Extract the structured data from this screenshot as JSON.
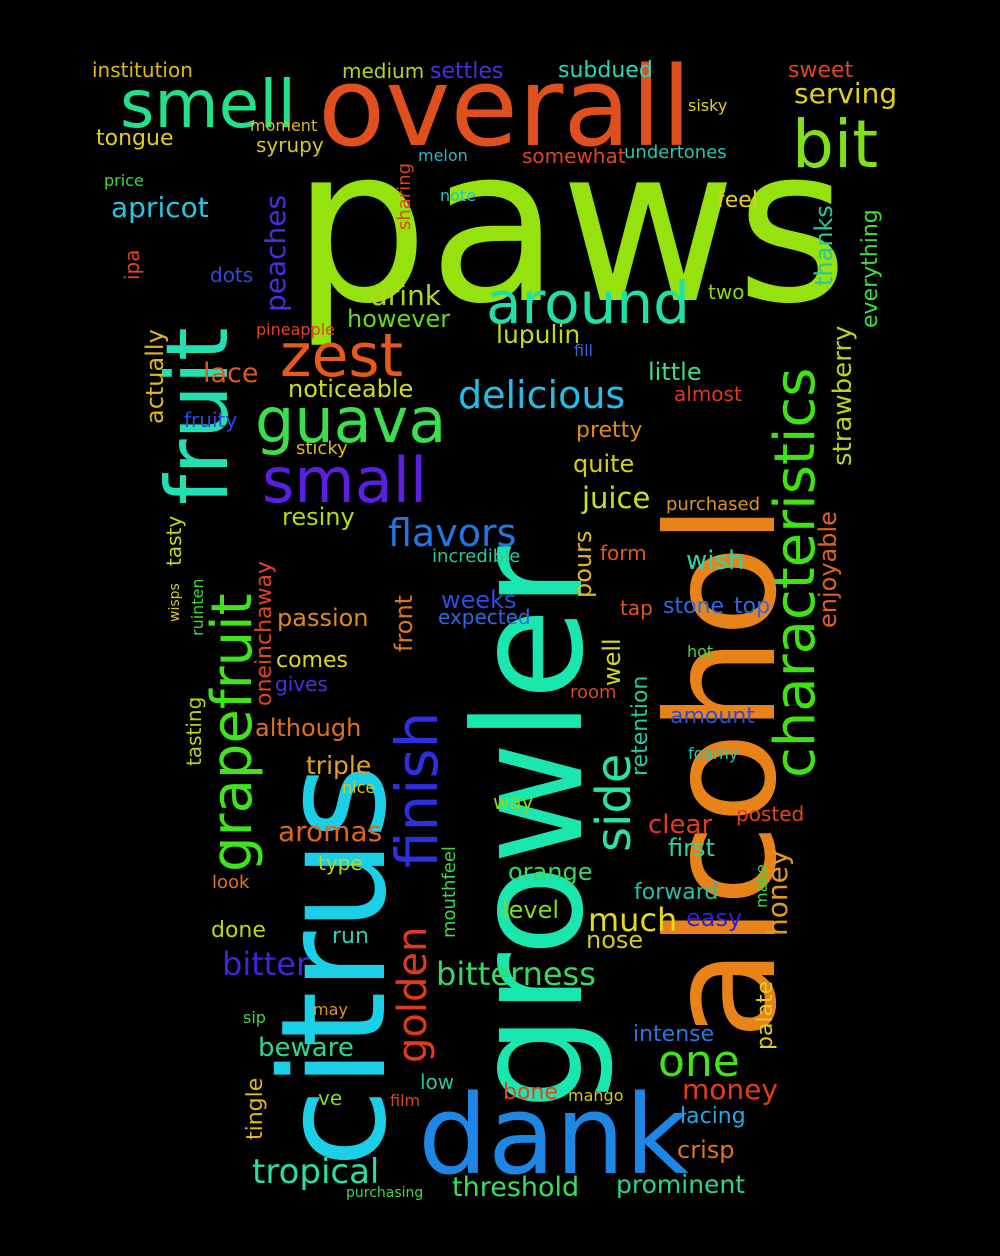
{
  "words": [
    {
      "text": "paws",
      "color": "#95e20f"
    },
    {
      "text": "alcohol",
      "color": "#e8831a"
    },
    {
      "text": "growler",
      "color": "#1ae7b0"
    },
    {
      "text": "citrus",
      "color": "#1bcfe6"
    },
    {
      "text": "fruit",
      "color": "#23e0b2"
    },
    {
      "text": "overall",
      "color": "#e0501e"
    },
    {
      "text": "dank",
      "color": "#1e86e4"
    },
    {
      "text": "characteristics",
      "color": "#3ee311"
    },
    {
      "text": "grapefruit",
      "color": "#40e41c"
    },
    {
      "text": "finish",
      "color": "#2d2fe0"
    },
    {
      "text": "smell",
      "color": "#21e28a"
    },
    {
      "text": "around",
      "color": "#20e0a8"
    },
    {
      "text": "bit",
      "color": "#80e01a"
    },
    {
      "text": "zest",
      "color": "#e65a1c"
    },
    {
      "text": "guava",
      "color": "#39e04c"
    },
    {
      "text": "small",
      "color": "#5a1fe0"
    },
    {
      "text": "delicious",
      "color": "#25bde8"
    },
    {
      "text": "side",
      "color": "#28e6a0"
    },
    {
      "text": "golden",
      "color": "#e43a1c"
    },
    {
      "text": "flavors",
      "color": "#2377e4"
    },
    {
      "text": "one",
      "color": "#40e418"
    },
    {
      "text": "bitterness",
      "color": "#3ad860"
    },
    {
      "text": "tropical",
      "color": "#2ae0a0"
    },
    {
      "text": "much",
      "color": "#e6d81c"
    },
    {
      "text": "juice",
      "color": "#c8e01e"
    },
    {
      "text": "bitter",
      "color": "#4521e0"
    },
    {
      "text": "money",
      "color": "#e63a1e"
    },
    {
      "text": "threshold",
      "color": "#39e060"
    },
    {
      "text": "prominent",
      "color": "#26d88a"
    },
    {
      "text": "strawberry",
      "color": "#b9d21c"
    },
    {
      "text": "enjoyable",
      "color": "#e2621c"
    },
    {
      "text": "honey",
      "color": "#e09a1c"
    },
    {
      "text": "peaches",
      "color": "#4a2fe0"
    },
    {
      "text": "serving",
      "color": "#e0cf1c"
    },
    {
      "text": "apricot",
      "color": "#26c6e6"
    },
    {
      "text": "drink",
      "color": "#b0d820"
    },
    {
      "text": "however",
      "color": "#64d81e"
    },
    {
      "text": "lupulin",
      "color": "#c2d91e"
    },
    {
      "text": "lace",
      "color": "#e05a1c"
    },
    {
      "text": "noticeable",
      "color": "#d3da1e"
    },
    {
      "text": "little",
      "color": "#3cdf80"
    },
    {
      "text": "pretty",
      "color": "#e08a1c"
    },
    {
      "text": "quite",
      "color": "#d6ce1c"
    },
    {
      "text": "resiny",
      "color": "#b0d81c"
    },
    {
      "text": "wish",
      "color": "#26d8b0"
    },
    {
      "text": "passion",
      "color": "#e08a1e"
    },
    {
      "text": "comes",
      "color": "#e0d61c"
    },
    {
      "text": "although",
      "color": "#e0701c"
    },
    {
      "text": "triple",
      "color": "#e0a51c"
    },
    {
      "text": "aromas",
      "color": "#e0661c"
    },
    {
      "text": "clear",
      "color": "#e63a1e"
    },
    {
      "text": "first",
      "color": "#26d8a0"
    },
    {
      "text": "orange",
      "color": "#36d860"
    },
    {
      "text": "level",
      "color": "#86d81c"
    },
    {
      "text": "nose",
      "color": "#d8c81c"
    },
    {
      "text": "easy",
      "color": "#3321d8"
    },
    {
      "text": "forward",
      "color": "#26c0a8"
    },
    {
      "text": "done",
      "color": "#b7d81c"
    },
    {
      "text": "run",
      "color": "#26d0b8"
    },
    {
      "text": "beware",
      "color": "#2bd890"
    },
    {
      "text": "crisp",
      "color": "#e0761c"
    },
    {
      "text": "lacing",
      "color": "#23a9e0"
    },
    {
      "text": "intense",
      "color": "#2679e0"
    },
    {
      "text": "bone",
      "color": "#e0461c"
    },
    {
      "text": "weeks",
      "color": "#2d4ce0"
    },
    {
      "text": "expected",
      "color": "#2d6ae0"
    },
    {
      "text": "pours",
      "color": "#e0b81c"
    },
    {
      "text": "well",
      "color": "#d4d81c"
    },
    {
      "text": "front",
      "color": "#e0761c"
    },
    {
      "text": "thanks",
      "color": "#26c8a0"
    },
    {
      "text": "everything",
      "color": "#3cdf40"
    },
    {
      "text": "actually",
      "color": "#e0b81c"
    },
    {
      "text": "tasting",
      "color": "#b0d81c"
    },
    {
      "text": "tingle",
      "color": "#e0b81c"
    },
    {
      "text": "retention",
      "color": "#26c8a0"
    },
    {
      "text": "palate",
      "color": "#e0cf1c"
    },
    {
      "text": "institution",
      "color": "#e0b81c"
    },
    {
      "text": "medium",
      "color": "#b0d81c"
    },
    {
      "text": "settles",
      "color": "#4a2fe0"
    },
    {
      "text": "subdued",
      "color": "#26d8c0"
    },
    {
      "text": "sweet",
      "color": "#e0461c"
    },
    {
      "text": "tongue",
      "color": "#e0cf1c"
    },
    {
      "text": "syrupy",
      "color": "#d8c81c"
    },
    {
      "text": "moment",
      "color": "#e0b81c"
    },
    {
      "text": "somewhat",
      "color": "#e0461c"
    },
    {
      "text": "undertones",
      "color": "#26c8b0"
    },
    {
      "text": "melon",
      "color": "#26b8c8"
    },
    {
      "text": "sharing",
      "color": "#e0461c"
    },
    {
      "text": "note",
      "color": "#26c8c0"
    },
    {
      "text": "sisky",
      "color": "#e0cf1c"
    },
    {
      "text": "price",
      "color": "#40d840"
    },
    {
      "text": "ipa",
      "color": "#e0461c"
    },
    {
      "text": "dots",
      "color": "#2d4ce0"
    },
    {
      "text": "feel",
      "color": "#e0cf1c"
    },
    {
      "text": "two",
      "color": "#86d81c"
    },
    {
      "text": "pineapple",
      "color": "#e0461c"
    },
    {
      "text": "fill",
      "color": "#2d6ae0"
    },
    {
      "text": "almost",
      "color": "#e03a1c"
    },
    {
      "text": "fruity",
      "color": "#2d4ce0"
    },
    {
      "text": "sticky",
      "color": "#e0b81c"
    },
    {
      "text": "purchased",
      "color": "#e0961c"
    },
    {
      "text": "incredible",
      "color": "#26c8a0"
    },
    {
      "text": "form",
      "color": "#e0561c"
    },
    {
      "text": "tap",
      "color": "#e0561c"
    },
    {
      "text": "stone",
      "color": "#2d6ae0"
    },
    {
      "text": "top",
      "color": "#2d6ae0"
    },
    {
      "text": "tasty",
      "color": "#c8d81c"
    },
    {
      "text": "wisps",
      "color": "#d8c81c"
    },
    {
      "text": "ruinten",
      "color": "#40d840"
    },
    {
      "text": "oneinchaway",
      "color": "#e0461c"
    },
    {
      "text": "gives",
      "color": "#4a2fe0"
    },
    {
      "text": "amount",
      "color": "#2d4ce0"
    },
    {
      "text": "hot",
      "color": "#40d840"
    },
    {
      "text": "room",
      "color": "#e0461c"
    },
    {
      "text": "foamy",
      "color": "#26c8b0"
    },
    {
      "text": "way",
      "color": "#86d81c"
    },
    {
      "text": "nice",
      "color": "#d8c81c"
    },
    {
      "text": "posted",
      "color": "#e0461c"
    },
    {
      "text": "type",
      "color": "#b0d81c"
    },
    {
      "text": "look",
      "color": "#e0761c"
    },
    {
      "text": "mouthfeel",
      "color": "#40d840"
    },
    {
      "text": "make",
      "color": "#40d840"
    },
    {
      "text": "may",
      "color": "#e0961c"
    },
    {
      "text": "sip",
      "color": "#40d840"
    },
    {
      "text": "low",
      "color": "#26c8a0"
    },
    {
      "text": "ve",
      "color": "#86d81c"
    },
    {
      "text": "film",
      "color": "#e0461c"
    },
    {
      "text": "mango",
      "color": "#d8c81c"
    },
    {
      "text": "purchasing",
      "color": "#40d840"
    }
  ]
}
